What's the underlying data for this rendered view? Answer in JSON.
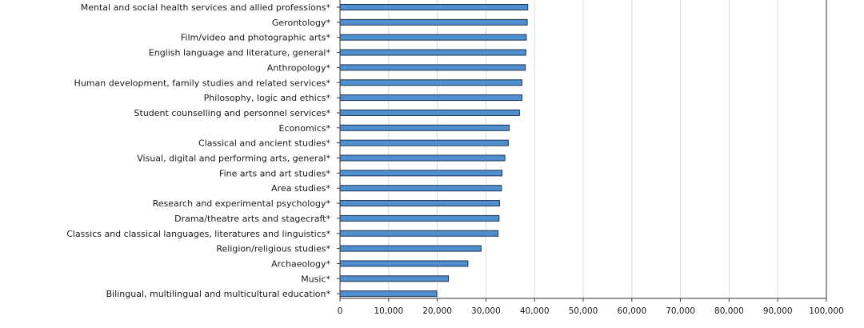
{
  "chart_data": {
    "type": "bar",
    "orientation": "horizontal",
    "categories": [
      "Mental and social health services and allied professions*",
      "Gerontology*",
      "Film/video and photographic arts*",
      "English language and literature, general*",
      "Anthropology*",
      "Human development, family studies and related services*",
      "Philosophy, logic and ethics*",
      "Student counselling and personnel services*",
      "Economics*",
      "Classical and ancient studies*",
      "Visual, digital and performing arts, general*",
      "Fine arts and art studies*",
      "Area studies*",
      "Research and experimental psychology*",
      "Drama/theatre arts and stagecraft*",
      "Classics and classical languages, literatures and linguistics*",
      "Religion/religious studies*",
      "Archaeology*",
      "Music*",
      "Bilingual, multilingual and multicultural education*"
    ],
    "values": [
      38600,
      38500,
      38300,
      38200,
      38100,
      37400,
      37400,
      36900,
      34800,
      34600,
      33900,
      33300,
      33200,
      32800,
      32700,
      32500,
      29000,
      26300,
      22300,
      19900
    ],
    "x_ticks": [
      "0",
      "10,000",
      "20,000",
      "30,000",
      "40,000",
      "50,000",
      "60,000",
      "70,000",
      "80,000",
      "90,000",
      "100,000"
    ],
    "xlim": [
      0,
      100000
    ],
    "grid": true,
    "bar_color": "#4f8fd0",
    "bar_edge_color": "#1f3550",
    "title": "",
    "xlabel": "",
    "ylabel": ""
  }
}
